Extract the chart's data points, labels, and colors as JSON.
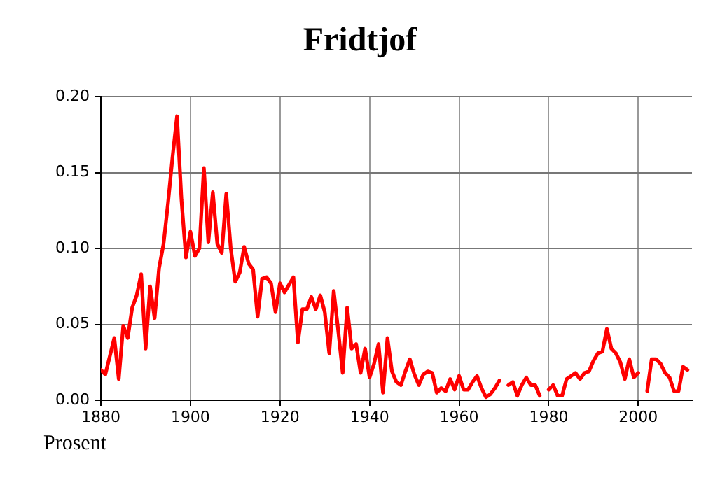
{
  "chart_data": {
    "type": "line",
    "title": "Fridtjof",
    "ylabel": "Prosent",
    "x": [
      1880,
      1881,
      1882,
      1883,
      1884,
      1885,
      1886,
      1887,
      1888,
      1889,
      1890,
      1891,
      1892,
      1893,
      1894,
      1895,
      1896,
      1897,
      1898,
      1899,
      1900,
      1901,
      1902,
      1903,
      1904,
      1905,
      1906,
      1907,
      1908,
      1909,
      1910,
      1911,
      1912,
      1913,
      1914,
      1915,
      1916,
      1917,
      1918,
      1919,
      1920,
      1921,
      1922,
      1923,
      1924,
      1925,
      1926,
      1927,
      1928,
      1929,
      1930,
      1931,
      1932,
      1933,
      1934,
      1935,
      1936,
      1937,
      1938,
      1939,
      1940,
      1941,
      1942,
      1943,
      1944,
      1945,
      1946,
      1947,
      1948,
      1949,
      1950,
      1951,
      1952,
      1953,
      1954,
      1955,
      1956,
      1957,
      1958,
      1959,
      1960,
      1961,
      1962,
      1963,
      1964,
      1965,
      1966,
      1967,
      1968,
      1969,
      1970,
      1971,
      1972,
      1973,
      1974,
      1975,
      1976,
      1977,
      1978,
      1979,
      1980,
      1981,
      1982,
      1983,
      1984,
      1985,
      1986,
      1987,
      1988,
      1989,
      1990,
      1991,
      1992,
      1993,
      1994,
      1995,
      1996,
      1997,
      1998,
      1999,
      2000,
      2001,
      2002,
      2003,
      2004,
      2005,
      2006,
      2007,
      2008,
      2009,
      2010,
      2011
    ],
    "series": [
      {
        "color": "#ff0000",
        "values": [
          0.02,
          0.017,
          0.029,
          0.041,
          0.014,
          0.049,
          0.041,
          0.061,
          0.069,
          0.083,
          0.034,
          0.075,
          0.054,
          0.087,
          0.103,
          0.13,
          0.16,
          0.187,
          0.132,
          0.094,
          0.111,
          0.095,
          0.1,
          0.153,
          0.104,
          0.137,
          0.103,
          0.097,
          0.136,
          0.1,
          0.078,
          0.084,
          0.101,
          0.09,
          0.086,
          0.055,
          0.08,
          0.081,
          0.077,
          0.058,
          0.077,
          0.071,
          0.076,
          0.081,
          0.038,
          0.06,
          0.06,
          0.068,
          0.06,
          0.069,
          0.058,
          0.031,
          0.072,
          0.046,
          0.018,
          0.061,
          0.034,
          0.037,
          0.018,
          0.034,
          0.015,
          0.024,
          0.037,
          0.005,
          0.041,
          0.019,
          0.012,
          0.01,
          0.019,
          0.027,
          0.017,
          0.01,
          0.017,
          0.019,
          0.018,
          0.005,
          0.008,
          0.006,
          0.014,
          0.007,
          0.016,
          0.007,
          0.007,
          0.012,
          0.016,
          0.008,
          0.002,
          0.004,
          0.008,
          0.013,
          null,
          0.01,
          0.012,
          0.003,
          0.01,
          0.015,
          0.01,
          0.01,
          0.003,
          null,
          0.007,
          0.01,
          0.003,
          0.003,
          0.014,
          0.016,
          0.018,
          0.014,
          0.018,
          0.019,
          0.026,
          0.031,
          0.032,
          0.047,
          0.034,
          0.031,
          0.025,
          0.014,
          0.027,
          0.015,
          0.018,
          null,
          0.006,
          0.027,
          0.027,
          0.024,
          0.018,
          0.015,
          0.006,
          0.006,
          0.022,
          0.02
        ]
      }
    ],
    "xlim": [
      1880,
      2012
    ],
    "xticks": [
      1880,
      1900,
      1920,
      1940,
      1960,
      1980,
      2000
    ],
    "ylim": [
      0,
      0.2
    ],
    "yticks": [
      {
        "value": 0,
        "label": "0.00"
      },
      {
        "value": 0.05,
        "label": "0.05"
      },
      {
        "value": 0.1,
        "label": "0.10"
      },
      {
        "value": 0.15,
        "label": "0.15"
      },
      {
        "value": 0.2,
        "label": "0.20"
      }
    ],
    "grid": true,
    "legend": false,
    "marker": "none",
    "line_style": "solid"
  }
}
